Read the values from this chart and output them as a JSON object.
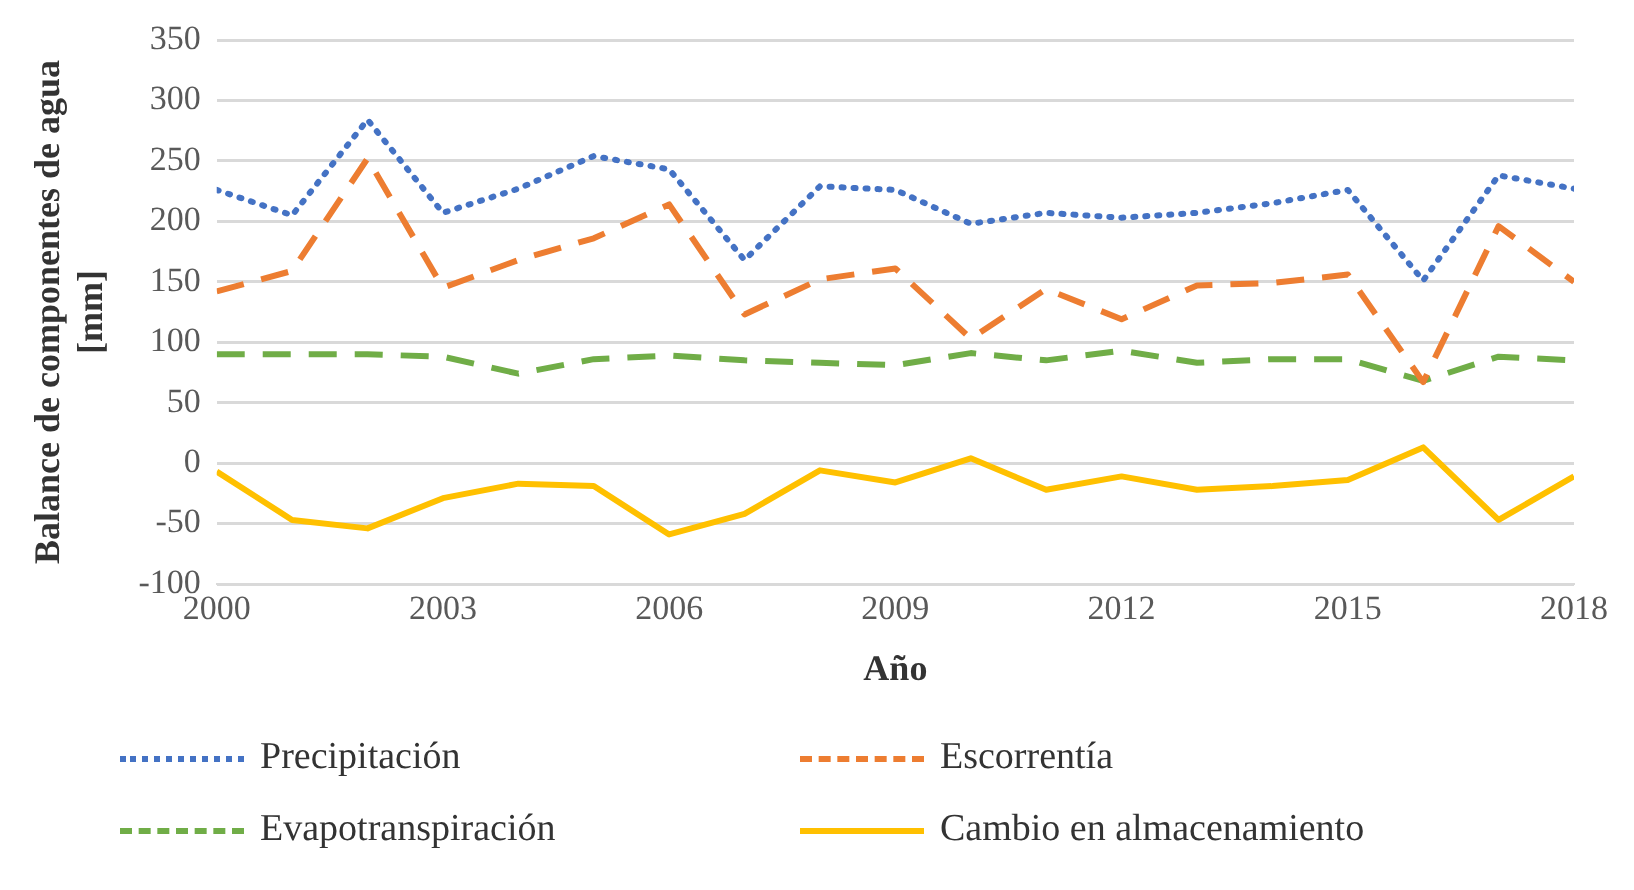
{
  "chart_data": {
    "type": "line",
    "xlabel": "Año",
    "ylabel": "Balance de componentes de agua [mm]",
    "x": [
      2000,
      2001,
      2002,
      2003,
      2004,
      2005,
      2006,
      2007,
      2008,
      2009,
      2010,
      2011,
      2012,
      2013,
      2014,
      2015,
      2016,
      2017,
      2018
    ],
    "xlim": [
      2000,
      2018
    ],
    "xticks": [
      2000,
      2003,
      2006,
      2009,
      2012,
      2015,
      2018
    ],
    "ylim": [
      -100,
      350
    ],
    "yticks": [
      -100,
      -50,
      0,
      50,
      100,
      150,
      200,
      250,
      300,
      350
    ],
    "grid": "y",
    "legend": "bottom",
    "marker": "none",
    "series": [
      {
        "name": "Precipitación",
        "color": "#4472c4",
        "line_style": "dotted",
        "values": [
          226,
          205,
          284,
          207,
          227,
          254,
          243,
          168,
          229,
          226,
          198,
          207,
          203,
          207,
          215,
          226,
          151,
          238,
          227
        ]
      },
      {
        "name": "Escorrentía",
        "color": "#ed7d31",
        "line_style": "dashed",
        "values": [
          142,
          159,
          252,
          145,
          168,
          186,
          214,
          123,
          152,
          161,
          103,
          144,
          119,
          147,
          149,
          156,
          67,
          196,
          150
        ]
      },
      {
        "name": "Evapotranspiración",
        "color": "#70ad47",
        "line_style": "dashed",
        "values": [
          90,
          90,
          90,
          88,
          74,
          86,
          89,
          85,
          83,
          81,
          91,
          85,
          93,
          83,
          86,
          86,
          68,
          88,
          85
        ]
      },
      {
        "name": "Cambio en almacenamiento",
        "color": "#ffc000",
        "line_style": "solid",
        "values": [
          -7,
          -47,
          -54,
          -29,
          -17,
          -19,
          -59,
          -42,
          -6,
          -16,
          4,
          -22,
          -11,
          -22,
          -19,
          -14,
          13,
          -47,
          -11
        ]
      }
    ]
  }
}
